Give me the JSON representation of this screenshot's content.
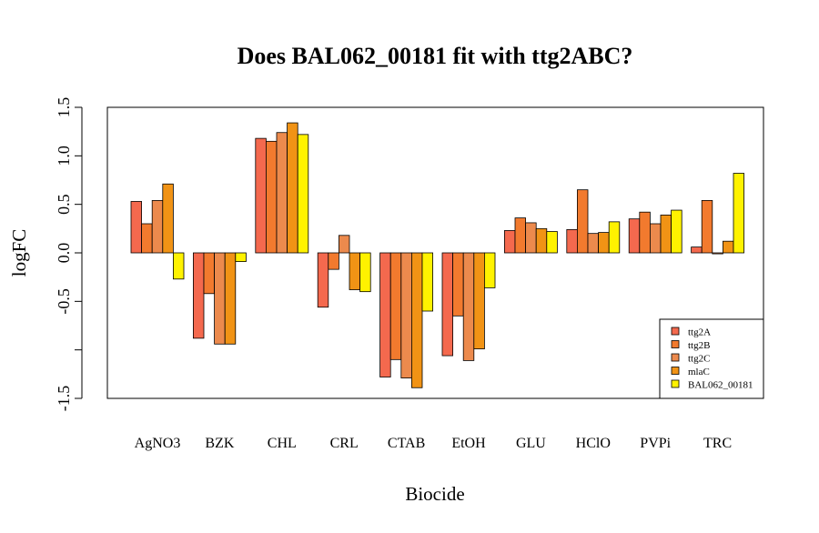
{
  "chart_data": {
    "type": "bar",
    "title": "Does BAL062_00181 fit with ttg2ABC?",
    "xlabel": "Biocide",
    "ylabel": "logFC",
    "ylim": [
      -1.5,
      1.5
    ],
    "yticks": [
      "-1.5",
      "",
      "-0.5",
      "0.0",
      "0.5",
      "1.0",
      "1.5"
    ],
    "ytick_values": [
      -1.5,
      -1.0,
      -0.5,
      0.0,
      0.5,
      1.0,
      1.5
    ],
    "categories": [
      "AgNO3",
      "BZK",
      "CHL",
      "CRL",
      "CTAB",
      "EtOH",
      "GLU",
      "HClO",
      "PVPi",
      "TRC"
    ],
    "legend_position": "bottom-right",
    "grid": false,
    "series": [
      {
        "name": "ttg2A",
        "color": "#F4694E",
        "values": [
          0.53,
          -0.88,
          1.18,
          -0.56,
          -1.28,
          -1.06,
          0.23,
          0.24,
          0.35,
          0.06
        ]
      },
      {
        "name": "ttg2B",
        "color": "#F27A2E",
        "values": [
          0.3,
          -0.42,
          1.15,
          -0.17,
          -1.1,
          -0.65,
          0.36,
          0.65,
          0.42,
          0.54
        ]
      },
      {
        "name": "ttg2C",
        "color": "#EC8A4D",
        "values": [
          0.54,
          -0.94,
          1.24,
          0.18,
          -1.29,
          -1.11,
          0.31,
          0.2,
          0.3,
          -0.01
        ]
      },
      {
        "name": "mlaC",
        "color": "#F19315",
        "values": [
          0.71,
          -0.94,
          1.34,
          -0.38,
          -1.39,
          -0.99,
          0.25,
          0.21,
          0.39,
          0.12
        ]
      },
      {
        "name": "BAL062_00181",
        "color": "#FFF200",
        "values": [
          -0.27,
          -0.09,
          1.22,
          -0.4,
          -0.6,
          -0.36,
          0.22,
          0.32,
          0.44,
          0.82
        ]
      }
    ]
  }
}
